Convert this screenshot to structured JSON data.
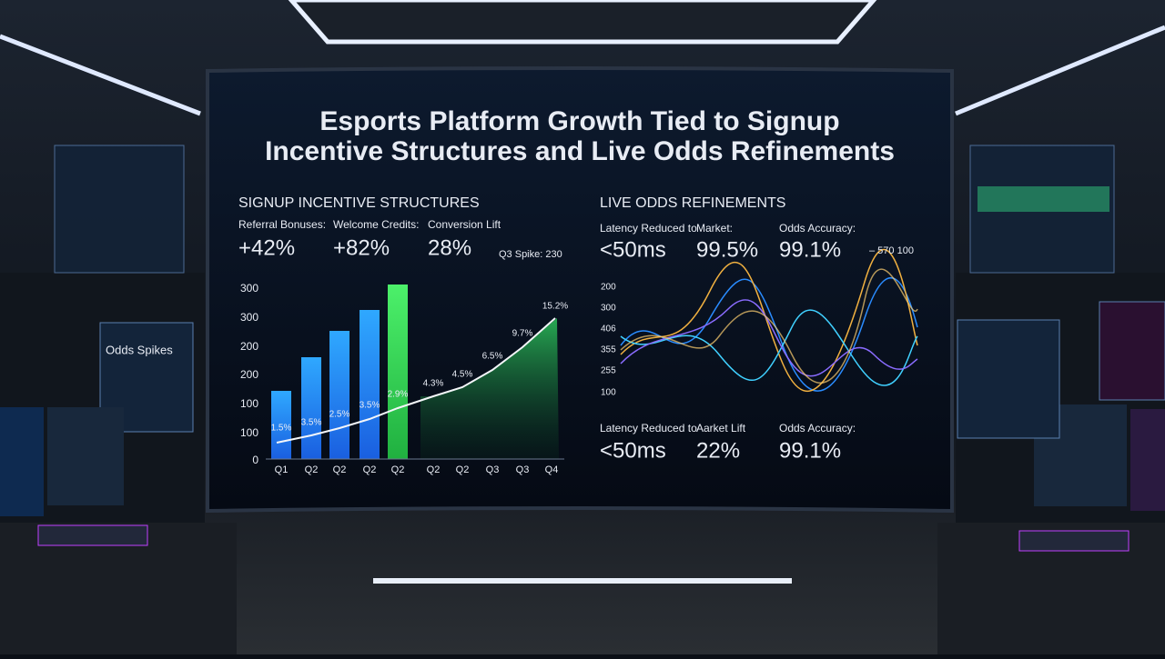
{
  "title": [
    "Esports Platform Growth Tied to Signup",
    "Incentive Structures and Live Odds Refinements"
  ],
  "left": {
    "heading": "SIGNUP INCENTIVE STRUCTURES",
    "metrics": [
      {
        "label": "Referral Bonuses:",
        "value": "+42%"
      },
      {
        "label": "Welcome Credits:",
        "value": "+82%"
      },
      {
        "label": "Conversion Lift",
        "value": "28%"
      }
    ],
    "note": "Q3 Spike: 230",
    "axis_labels": [
      "300",
      "300",
      "200",
      "200",
      "100",
      "100",
      "0"
    ],
    "x_labels": [
      "Q1",
      "Q2",
      "Q2",
      "Q2",
      "Q2",
      "Q2",
      "Q2",
      "Q3",
      "Q3",
      "Q4"
    ],
    "point_labels": [
      "1.5%",
      "3.5%",
      "2.5%",
      "3.5%",
      "2.9%",
      "4.3%",
      "4.5%",
      "6.5%",
      "9.7%",
      "15.2%"
    ]
  },
  "right": {
    "heading": "LIVE ODDS REFINEMENTS",
    "metrics": [
      {
        "label": "Latency Reduced to",
        "value": "<50ms"
      },
      {
        "label": "Market:",
        "value": "99.5%"
      },
      {
        "label": "Odds Accuracy:",
        "value": "99.1%"
      }
    ],
    "note": "– 570 100",
    "axis_labels": [
      "200",
      "300",
      "406",
      "355",
      "255",
      "100"
    ],
    "bottom_metrics": [
      {
        "label": "Latency Reduced to",
        "value": "<50ms"
      },
      {
        "label": "Aarket Lift",
        "value": "22%"
      },
      {
        "label": "Odds Accuracy:",
        "value": "99.1%"
      }
    ]
  },
  "side_panel": {
    "title": "Odds Spikes"
  }
}
